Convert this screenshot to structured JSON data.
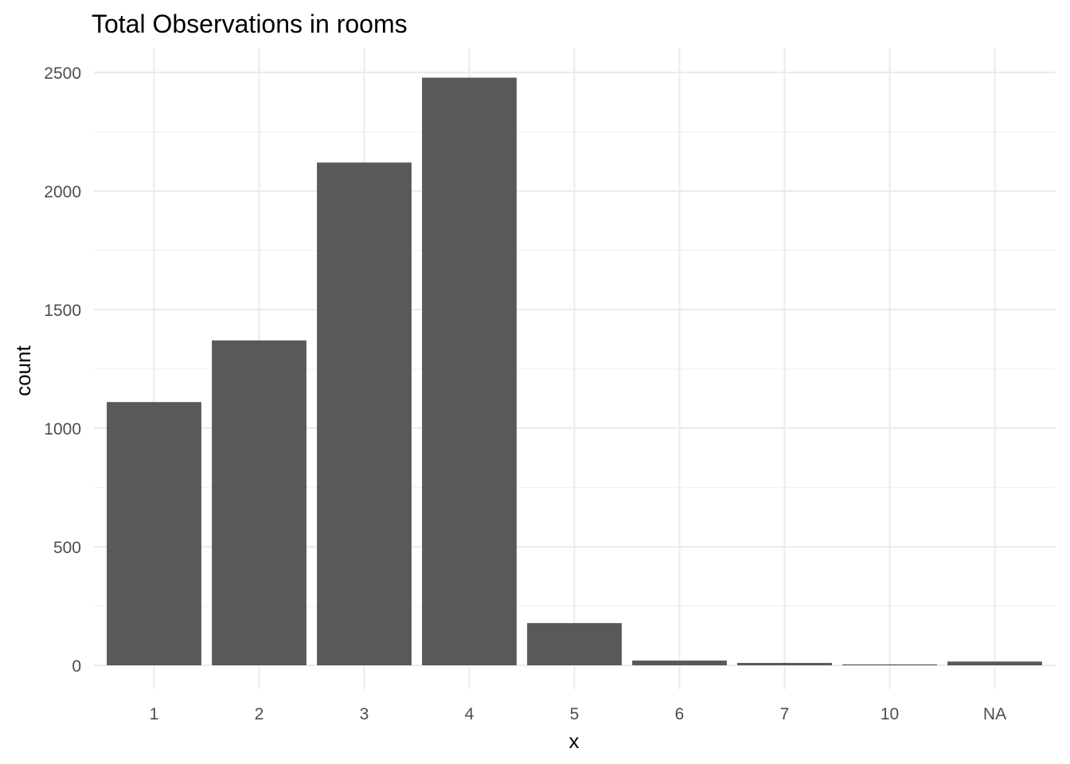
{
  "chart_data": {
    "type": "bar",
    "title": "Total Observations in  rooms",
    "xlabel": "x",
    "ylabel": "count",
    "categories": [
      "1",
      "2",
      "3",
      "4",
      "5",
      "6",
      "7",
      "10",
      "NA"
    ],
    "values": [
      1110,
      1370,
      2120,
      2478,
      178,
      20,
      10,
      4,
      16
    ],
    "ylim": [
      0,
      2500
    ],
    "yticks": [
      0,
      500,
      1000,
      1500,
      2000,
      2500
    ],
    "ytick_labels": [
      "0",
      "500",
      "1000",
      "1500",
      "2000",
      "2500"
    ],
    "grid": true,
    "legend": "none",
    "bar_color": "#595959",
    "grid_color": "#ebebeb"
  }
}
